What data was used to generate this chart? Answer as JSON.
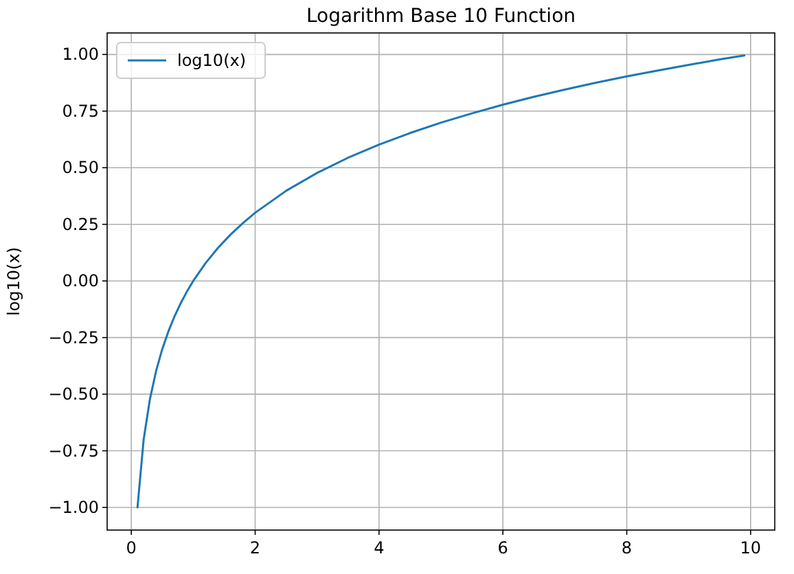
{
  "chart_data": {
    "type": "line",
    "title": "Logarithm Base 10 Function",
    "ylabel": "log10(x)",
    "x": [
      0.1,
      0.2,
      0.3,
      0.4,
      0.5,
      0.6,
      0.7,
      0.8,
      0.9,
      1.0,
      1.2,
      1.4,
      1.6,
      1.8,
      2.0,
      2.5,
      3,
      3.5,
      4,
      4.5,
      5,
      5.5,
      6,
      6.5,
      7,
      7.5,
      8,
      8.5,
      9,
      9.5,
      9.9
    ],
    "series": [
      {
        "name": "log10(x)",
        "color": "#1f77b4",
        "values": [
          -1,
          -0.699,
          -0.523,
          -0.398,
          -0.301,
          -0.222,
          -0.155,
          -0.097,
          -0.046,
          0,
          0.079,
          0.146,
          0.204,
          0.255,
          0.301,
          0.398,
          0.477,
          0.544,
          0.602,
          0.653,
          0.699,
          0.74,
          0.778,
          0.813,
          0.845,
          0.875,
          0.903,
          0.929,
          0.954,
          0.978,
          0.996
        ]
      }
    ],
    "xlim": [
      -0.39,
      10.39
    ],
    "ylim": [
      -1.1,
      1.095
    ],
    "xticks": [
      0,
      2,
      4,
      6,
      8,
      10
    ],
    "yticks": [
      {
        "value": -1,
        "label": "−1.00"
      },
      {
        "value": -0.75,
        "label": "−0.75"
      },
      {
        "value": -0.5,
        "label": "−0.50"
      },
      {
        "value": -0.25,
        "label": "−0.25"
      },
      {
        "value": 0,
        "label": "0.00"
      },
      {
        "value": 0.25,
        "label": "0.25"
      },
      {
        "value": 0.5,
        "label": "0.50"
      },
      {
        "value": 0.75,
        "label": "0.75"
      },
      {
        "value": 1,
        "label": "1.00"
      }
    ],
    "grid": true,
    "legend": "top left",
    "line_style": "solid",
    "marker": "none"
  }
}
